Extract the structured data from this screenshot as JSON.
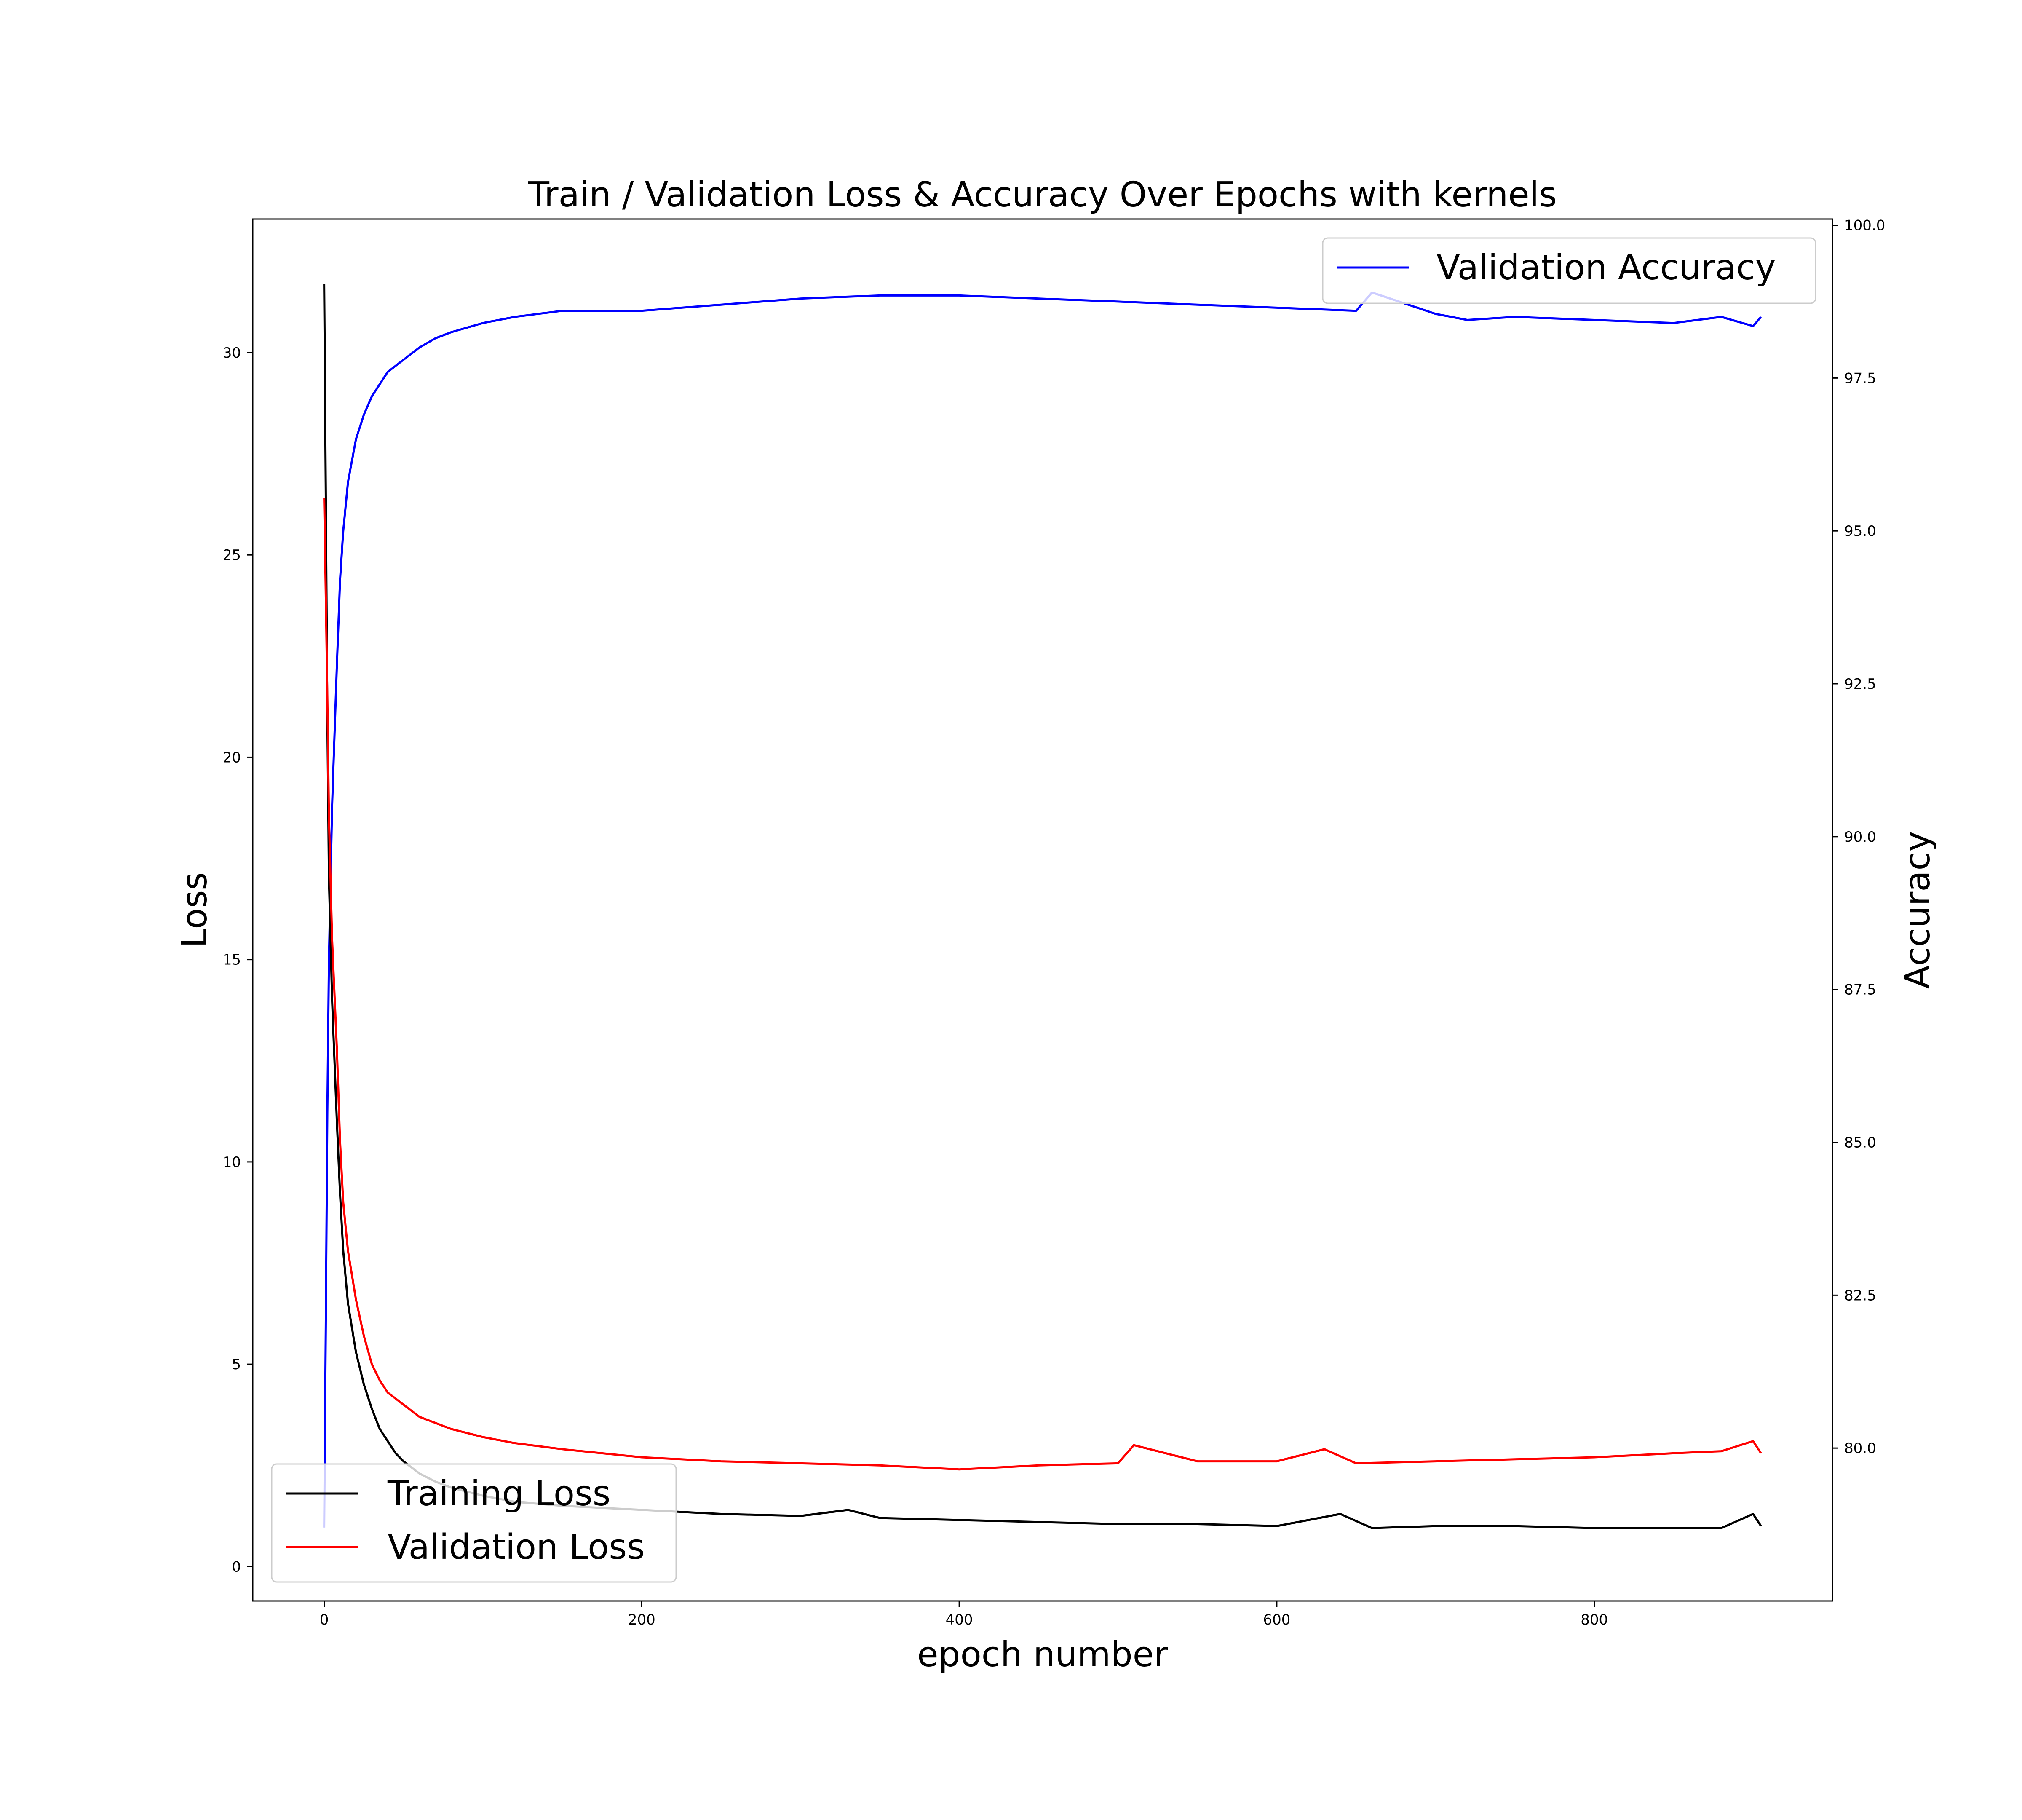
{
  "chart_data": {
    "type": "line",
    "title": "Train / Validation Loss & Accuracy Over Epochs with kernels",
    "xlabel": "epoch number",
    "ylabel": "Loss",
    "y2label": "Accuracy",
    "xlim": [
      -45,
      950
    ],
    "ylim": [
      -0.85,
      33.3
    ],
    "y2lim": [
      77.5,
      100.1
    ],
    "xticks": [
      0,
      200,
      400,
      600,
      800
    ],
    "yticks": [
      0,
      5,
      10,
      15,
      20,
      25,
      30
    ],
    "y2ticks": [
      "80.0",
      "82.5",
      "85.0",
      "87.5",
      "90.0",
      "92.5",
      "95.0",
      "97.5",
      "100.0"
    ],
    "grid": false,
    "legend_left": {
      "placement": "bottom-left",
      "entries": [
        "Training Loss",
        "Validation Loss"
      ]
    },
    "legend_right": {
      "placement": "top-right",
      "entries": [
        "Validation Accuracy"
      ]
    },
    "series": [
      {
        "name": "Training Loss",
        "axis": "left",
        "color": "#000000",
        "x": [
          0,
          1,
          2,
          3,
          5,
          8,
          10,
          12,
          15,
          20,
          25,
          30,
          35,
          40,
          45,
          50,
          60,
          70,
          80,
          100,
          120,
          150,
          200,
          250,
          300,
          330,
          350,
          400,
          450,
          500,
          550,
          600,
          640,
          660,
          700,
          750,
          800,
          850,
          880,
          900,
          905
        ],
        "y": [
          31.7,
          26.5,
          21.0,
          17.0,
          14.0,
          11.0,
          9.2,
          7.8,
          6.5,
          5.3,
          4.5,
          3.9,
          3.4,
          3.1,
          2.8,
          2.6,
          2.3,
          2.1,
          1.95,
          1.75,
          1.6,
          1.5,
          1.4,
          1.3,
          1.25,
          1.4,
          1.2,
          1.15,
          1.1,
          1.05,
          1.05,
          1.0,
          1.3,
          0.95,
          1.0,
          1.0,
          0.95,
          0.95,
          0.95,
          1.3,
          1.0
        ]
      },
      {
        "name": "Validation Loss",
        "axis": "left",
        "color": "#ff0000",
        "x": [
          0,
          1,
          2,
          3,
          5,
          8,
          10,
          12,
          15,
          20,
          25,
          30,
          35,
          40,
          50,
          60,
          70,
          80,
          100,
          120,
          150,
          200,
          250,
          300,
          350,
          400,
          450,
          500,
          510,
          550,
          600,
          630,
          650,
          700,
          750,
          800,
          850,
          880,
          900,
          905
        ],
        "y": [
          26.4,
          24.0,
          21.5,
          18.5,
          15.5,
          12.8,
          10.5,
          9.0,
          7.8,
          6.6,
          5.7,
          5.0,
          4.6,
          4.3,
          4.0,
          3.7,
          3.55,
          3.4,
          3.2,
          3.05,
          2.9,
          2.7,
          2.6,
          2.55,
          2.5,
          2.4,
          2.5,
          2.55,
          3.0,
          2.6,
          2.6,
          2.9,
          2.55,
          2.6,
          2.65,
          2.7,
          2.8,
          2.85,
          3.1,
          2.8
        ]
      },
      {
        "name": "Validation Accuracy",
        "axis": "right",
        "color": "#0000ff",
        "x": [
          0,
          1,
          2,
          3,
          5,
          8,
          10,
          12,
          15,
          20,
          25,
          30,
          35,
          40,
          50,
          60,
          70,
          80,
          100,
          120,
          150,
          200,
          250,
          300,
          350,
          400,
          450,
          500,
          550,
          600,
          650,
          660,
          700,
          720,
          750,
          800,
          850,
          880,
          900,
          905
        ],
        "y": [
          78.7,
          82.0,
          85.5,
          88.0,
          90.5,
          92.8,
          94.2,
          95.0,
          95.8,
          96.5,
          96.9,
          97.2,
          97.4,
          97.6,
          97.8,
          98.0,
          98.15,
          98.25,
          98.4,
          98.5,
          98.6,
          98.6,
          98.7,
          98.8,
          98.85,
          98.85,
          98.8,
          98.75,
          98.7,
          98.65,
          98.6,
          98.9,
          98.55,
          98.45,
          98.5,
          98.45,
          98.4,
          98.5,
          98.35,
          98.5
        ]
      }
    ]
  }
}
